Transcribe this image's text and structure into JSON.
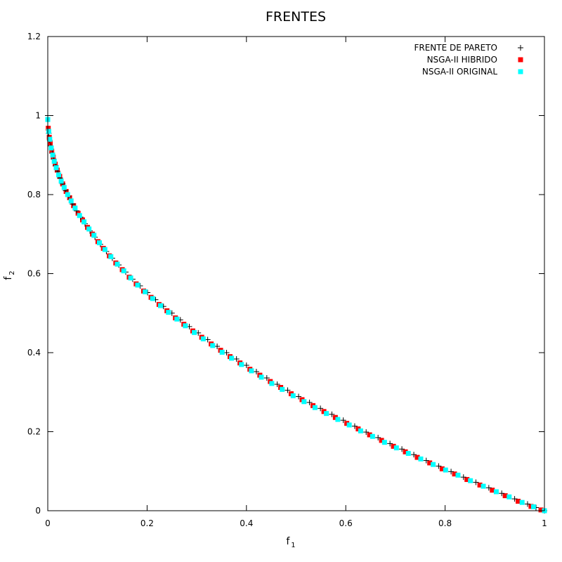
{
  "chart_data": {
    "type": "scatter",
    "title": "FRENTES",
    "xlabel": "f",
    "xlabel_sub": "1",
    "ylabel": "f",
    "ylabel_sub": "2",
    "xlim": [
      0,
      1
    ],
    "ylim": [
      0,
      1.2
    ],
    "xticks": [
      0,
      0.2,
      0.4,
      0.6,
      0.8,
      1
    ],
    "xtick_labels": [
      "0",
      "0.2",
      "0.4",
      "0.6",
      "0.8",
      "1"
    ],
    "yticks": [
      0,
      0.2,
      0.4,
      0.6,
      0.8,
      1,
      1.2
    ],
    "ytick_labels": [
      "0",
      "0.2",
      "0.4",
      "0.6",
      "0.8",
      "1",
      "1.2"
    ],
    "grid": false,
    "legend_position": "top-right",
    "series": [
      {
        "name": "FRENTE DE PARETO",
        "marker": "plus",
        "color": "#000000",
        "x": [
          0.0,
          0.002,
          0.004,
          0.006,
          0.009,
          0.012,
          0.016,
          0.02,
          0.025,
          0.03,
          0.036,
          0.042,
          0.05,
          0.058,
          0.066,
          0.075,
          0.085,
          0.095,
          0.106,
          0.118,
          0.13,
          0.143,
          0.157,
          0.171,
          0.186,
          0.201,
          0.217,
          0.233,
          0.25,
          0.267,
          0.285,
          0.303,
          0.322,
          0.341,
          0.36,
          0.38,
          0.4,
          0.42,
          0.441,
          0.462,
          0.483,
          0.505,
          0.527,
          0.549,
          0.572,
          0.595,
          0.618,
          0.641,
          0.665,
          0.689,
          0.713,
          0.737,
          0.762,
          0.787,
          0.812,
          0.837,
          0.862,
          0.888,
          0.914,
          0.94,
          0.966,
          0.983,
          1.0
        ],
        "y": [
          1.0,
          0.955,
          0.937,
          0.923,
          0.905,
          0.89,
          0.874,
          0.859,
          0.842,
          0.827,
          0.81,
          0.795,
          0.776,
          0.759,
          0.743,
          0.726,
          0.708,
          0.692,
          0.674,
          0.656,
          0.639,
          0.622,
          0.604,
          0.586,
          0.569,
          0.552,
          0.534,
          0.517,
          0.5,
          0.483,
          0.466,
          0.45,
          0.433,
          0.416,
          0.4,
          0.384,
          0.368,
          0.352,
          0.336,
          0.32,
          0.305,
          0.289,
          0.274,
          0.259,
          0.244,
          0.229,
          0.214,
          0.199,
          0.185,
          0.17,
          0.156,
          0.142,
          0.127,
          0.113,
          0.099,
          0.085,
          0.072,
          0.058,
          0.044,
          0.03,
          0.017,
          0.008,
          0.0
        ]
      },
      {
        "name": "NSGA-II HIBRIDO",
        "marker": "square",
        "color": "#ff0000",
        "x": [
          0.001,
          0.003,
          0.005,
          0.008,
          0.011,
          0.015,
          0.019,
          0.024,
          0.03,
          0.037,
          0.044,
          0.052,
          0.061,
          0.07,
          0.08,
          0.09,
          0.101,
          0.112,
          0.124,
          0.137,
          0.15,
          0.164,
          0.178,
          0.193,
          0.208,
          0.224,
          0.24,
          0.257,
          0.274,
          0.292,
          0.31,
          0.329,
          0.348,
          0.367,
          0.387,
          0.407,
          0.427,
          0.448,
          0.469,
          0.49,
          0.512,
          0.534,
          0.556,
          0.579,
          0.602,
          0.625,
          0.648,
          0.672,
          0.696,
          0.72,
          0.744,
          0.769,
          0.794,
          0.819,
          0.844,
          0.87,
          0.895,
          0.921,
          0.947,
          0.973,
          0.993
        ],
        "y": [
          0.968,
          0.945,
          0.929,
          0.91,
          0.895,
          0.877,
          0.862,
          0.846,
          0.827,
          0.808,
          0.792,
          0.772,
          0.753,
          0.736,
          0.717,
          0.7,
          0.681,
          0.664,
          0.645,
          0.627,
          0.61,
          0.591,
          0.574,
          0.556,
          0.54,
          0.522,
          0.506,
          0.488,
          0.472,
          0.455,
          0.439,
          0.422,
          0.406,
          0.39,
          0.374,
          0.358,
          0.343,
          0.327,
          0.312,
          0.296,
          0.281,
          0.266,
          0.251,
          0.236,
          0.221,
          0.207,
          0.192,
          0.178,
          0.163,
          0.149,
          0.135,
          0.121,
          0.106,
          0.093,
          0.079,
          0.065,
          0.052,
          0.038,
          0.024,
          0.011,
          0.002
        ]
      },
      {
        "name": "NSGA-II ORIGINAL",
        "marker": "square",
        "color": "#00ffff",
        "x": [
          0.0,
          0.002,
          0.004,
          0.007,
          0.01,
          0.013,
          0.017,
          0.022,
          0.027,
          0.033,
          0.04,
          0.047,
          0.055,
          0.064,
          0.073,
          0.083,
          0.093,
          0.104,
          0.115,
          0.127,
          0.14,
          0.153,
          0.167,
          0.181,
          0.196,
          0.211,
          0.227,
          0.243,
          0.26,
          0.277,
          0.295,
          0.313,
          0.332,
          0.351,
          0.37,
          0.39,
          0.41,
          0.43,
          0.451,
          0.472,
          0.494,
          0.516,
          0.538,
          0.561,
          0.584,
          0.607,
          0.63,
          0.654,
          0.678,
          0.702,
          0.726,
          0.751,
          0.776,
          0.801,
          0.826,
          0.851,
          0.877,
          0.903,
          0.929,
          0.955,
          0.978,
          1.0
        ],
        "y": [
          0.99,
          0.96,
          0.94,
          0.918,
          0.9,
          0.884,
          0.868,
          0.85,
          0.834,
          0.818,
          0.8,
          0.784,
          0.766,
          0.747,
          0.731,
          0.713,
          0.697,
          0.678,
          0.661,
          0.643,
          0.624,
          0.607,
          0.589,
          0.571,
          0.554,
          0.537,
          0.519,
          0.502,
          0.485,
          0.468,
          0.451,
          0.435,
          0.418,
          0.401,
          0.386,
          0.37,
          0.354,
          0.338,
          0.322,
          0.307,
          0.291,
          0.276,
          0.261,
          0.246,
          0.231,
          0.217,
          0.202,
          0.188,
          0.173,
          0.159,
          0.145,
          0.131,
          0.117,
          0.103,
          0.09,
          0.076,
          0.062,
          0.048,
          0.035,
          0.021,
          0.01,
          0.0
        ]
      }
    ]
  }
}
